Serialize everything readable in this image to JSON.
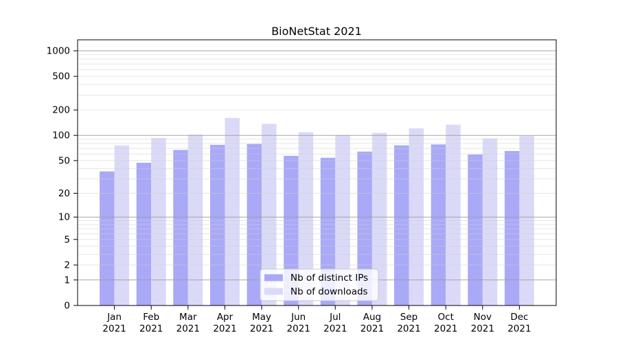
{
  "chart_data": {
    "type": "bar",
    "title": "BioNetStat 2021",
    "scale": "log1p",
    "grid": true,
    "legend_position": "bottom-center",
    "categories": [
      "Jan 2021",
      "Feb 2021",
      "Mar 2021",
      "Apr 2021",
      "May 2021",
      "Jun 2021",
      "Jul 2021",
      "Aug 2021",
      "Sep 2021",
      "Oct 2021",
      "Nov 2021",
      "Dec 2021"
    ],
    "category_line1": [
      "Jan",
      "Feb",
      "Mar",
      "Apr",
      "May",
      "Jun",
      "Jul",
      "Aug",
      "Sep",
      "Oct",
      "Nov",
      "Dec"
    ],
    "category_line2": "2021",
    "yticks": [
      0,
      1,
      2,
      5,
      10,
      20,
      50,
      100,
      200,
      500,
      1000
    ],
    "ylim": [
      0,
      1290
    ],
    "series": [
      {
        "name": "Nb of distinct IPs",
        "color": "#a9a9f8",
        "values": [
          37,
          47,
          67,
          77,
          79,
          57,
          54,
          64,
          76,
          78,
          59,
          65
        ]
      },
      {
        "name": "Nb of downloads",
        "color": "#dadaf8",
        "values": [
          76,
          93,
          102,
          161,
          137,
          109,
          101,
          107,
          121,
          134,
          92,
          98
        ]
      }
    ]
  },
  "colors": {
    "background": "#ffffff",
    "spine": "#000000",
    "major_grid": "#9a9a9a",
    "minor_grid": "#cfcfcf",
    "legend_border": "#c9c9c9",
    "legend_background": "#ffffff",
    "text": "#000000"
  }
}
